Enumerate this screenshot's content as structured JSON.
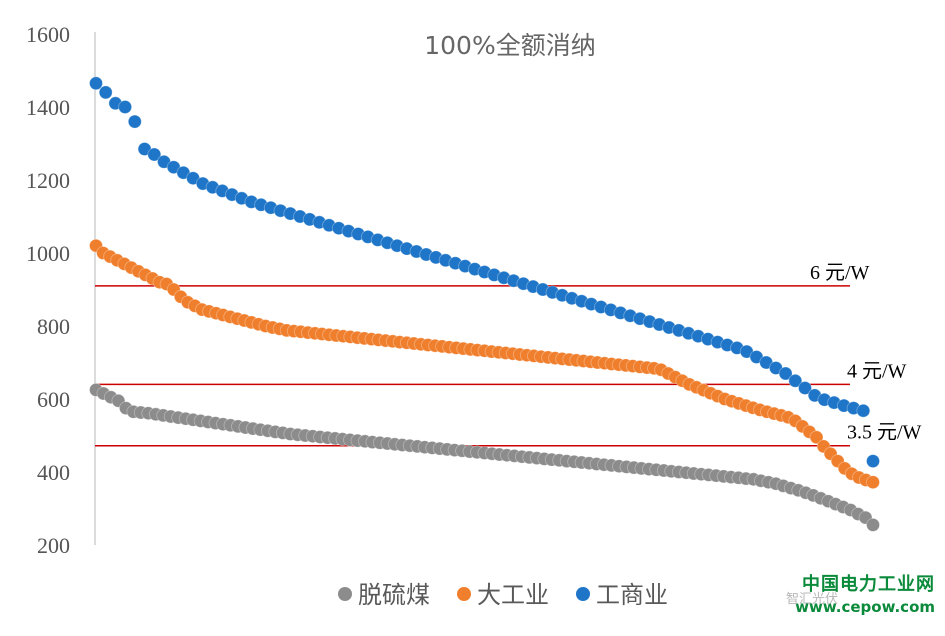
{
  "chart_data": {
    "type": "scatter",
    "title": "100%全额消纳",
    "ylim": [
      200,
      1600
    ],
    "yticks": [
      200,
      400,
      600,
      800,
      1000,
      1200,
      1400,
      1600
    ],
    "series": [
      {
        "name": "脱硫煤",
        "color": "#8c8c8c",
        "values": [
          625,
          615,
          605,
          595,
          575,
          565,
          563,
          561,
          558,
          555,
          552,
          549,
          546,
          543,
          540,
          537,
          534,
          531,
          528,
          525,
          522,
          519,
          516,
          513,
          510,
          507,
          504,
          502,
          500,
          498,
          496,
          494,
          492,
          490,
          488,
          486,
          484,
          482,
          480,
          478,
          476,
          474,
          472,
          470,
          468,
          466,
          464,
          462,
          460,
          458,
          456,
          454,
          452,
          450,
          448,
          446,
          444,
          442,
          440,
          438,
          436,
          434,
          432,
          430,
          428,
          426,
          424,
          422,
          420,
          418,
          416,
          414,
          412,
          410,
          408,
          406,
          404,
          402,
          400,
          398,
          396,
          394,
          392,
          390,
          388,
          386,
          384,
          382,
          380,
          376,
          372,
          368,
          362,
          356,
          350,
          343,
          336,
          328,
          320,
          312,
          304,
          296,
          285,
          275,
          255
        ]
      },
      {
        "name": "大工业",
        "color": "#f07f2d",
        "values": [
          1020,
          1000,
          990,
          980,
          970,
          960,
          950,
          940,
          930,
          920,
          915,
          900,
          880,
          865,
          855,
          845,
          840,
          835,
          830,
          825,
          820,
          815,
          810,
          805,
          800,
          796,
          792,
          788,
          786,
          784,
          782,
          780,
          778,
          776,
          774,
          772,
          770,
          768,
          766,
          764,
          762,
          760,
          758,
          756,
          754,
          752,
          750,
          748,
          746,
          744,
          742,
          740,
          738,
          736,
          734,
          732,
          730,
          728,
          726,
          724,
          722,
          720,
          718,
          716,
          714,
          712,
          710,
          708,
          706,
          704,
          702,
          700,
          698,
          696,
          694,
          692,
          690,
          688,
          686,
          684,
          680,
          670,
          660,
          650,
          640,
          632,
          624,
          616,
          608,
          600,
          594,
          588,
          582,
          576,
          570,
          565,
          560,
          555,
          550,
          540,
          525,
          510,
          495,
          470,
          450,
          430,
          410,
          395,
          385,
          378,
          372
        ]
      },
      {
        "name": "工商业",
        "color": "#1f76c8",
        "values": [
          1465,
          1440,
          1410,
          1400,
          1360,
          1285,
          1270,
          1250,
          1235,
          1220,
          1205,
          1190,
          1180,
          1170,
          1160,
          1150,
          1140,
          1132,
          1124,
          1116,
          1108,
          1100,
          1092,
          1084,
          1076,
          1068,
          1060,
          1052,
          1044,
          1036,
          1028,
          1020,
          1012,
          1004,
          996,
          988,
          980,
          972,
          964,
          956,
          948,
          940,
          932,
          924,
          916,
          908,
          900,
          892,
          884,
          876,
          868,
          860,
          852,
          844,
          836,
          828,
          820,
          812,
          804,
          796,
          788,
          780,
          772,
          764,
          756,
          748,
          740,
          730,
          715,
          700,
          685,
          670,
          650,
          630,
          610,
          598,
          590,
          582,
          575,
          568,
          430
        ]
      }
    ],
    "reference_lines": [
      {
        "label": "6 元/W",
        "y": 910,
        "color": "#cc0000"
      },
      {
        "label": "4 元/W",
        "y": 640,
        "color": "#cc0000"
      },
      {
        "label": "3.5 元/W",
        "y": 472,
        "color": "#cc0000"
      }
    ],
    "legend_position": "bottom",
    "grid": false
  },
  "watermark": {
    "line1": "中国电力工业网",
    "line2": "www.cepow.com",
    "faint": "智汇光伏"
  }
}
